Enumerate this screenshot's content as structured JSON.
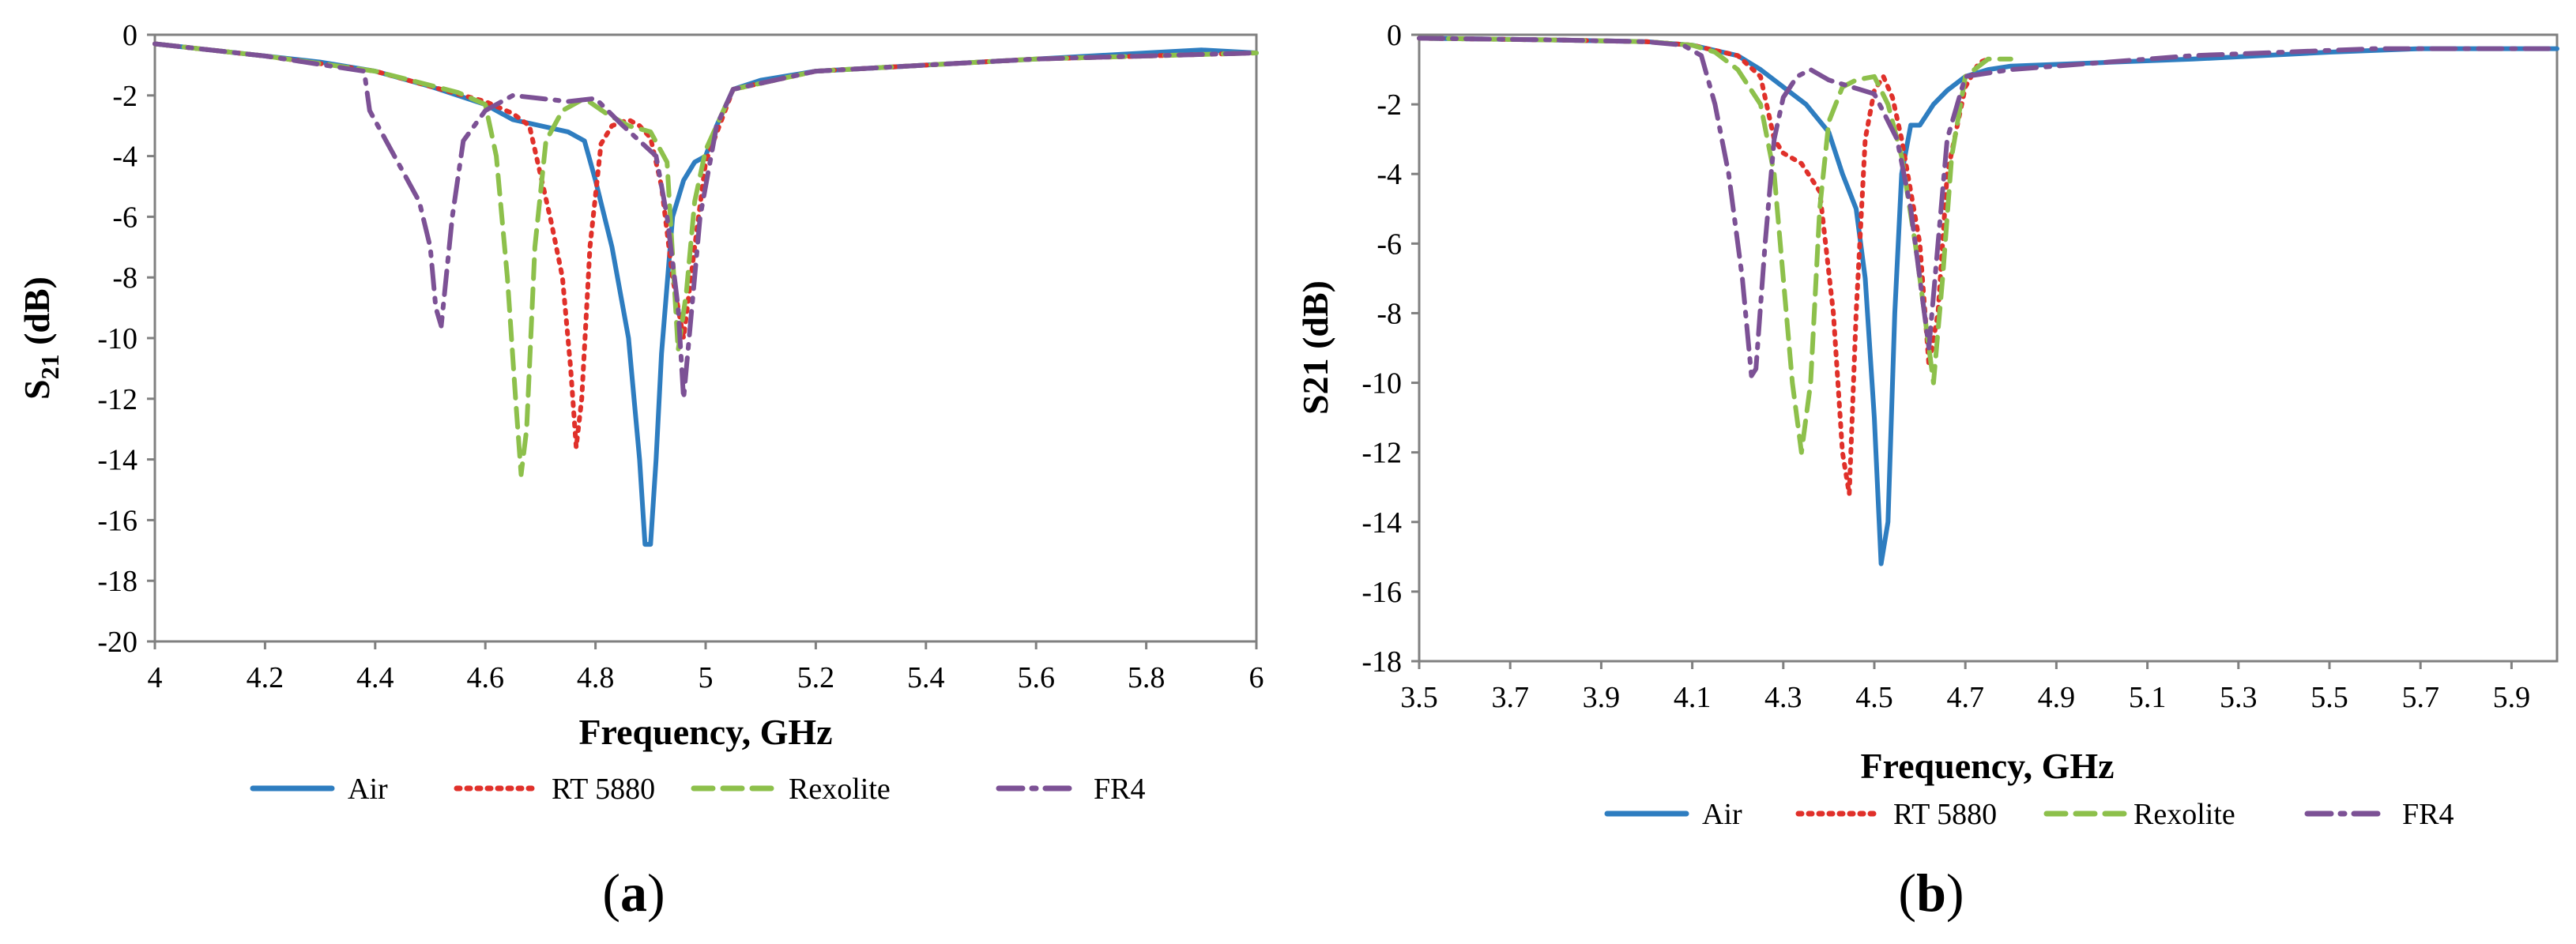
{
  "chart_data": [
    {
      "type": "line",
      "panel_label": "a",
      "title": "",
      "xlabel": "Frequency, GHz",
      "ylabel": {
        "main": "S",
        "sub": "21",
        "rest": " (dB)"
      },
      "xlim": [
        4,
        6
      ],
      "ylim": [
        -20,
        0
      ],
      "x_ticks": [
        "4",
        "4.2",
        "4.4",
        "4.6",
        "4.8",
        "5",
        "5.2",
        "5.4",
        "5.6",
        "5.8",
        "6"
      ],
      "y_ticks": [
        "0",
        "-2",
        "-4",
        "-6",
        "-8",
        "-10",
        "-12",
        "-14",
        "-16",
        "-18",
        "-20"
      ],
      "grid": false,
      "legend_position": "bottom",
      "series": [
        {
          "name": "Air",
          "color": "#2E7DC0",
          "style": "solid",
          "x": [
            4.0,
            4.1,
            4.2,
            4.3,
            4.4,
            4.5,
            4.6,
            4.65,
            4.7,
            4.75,
            4.78,
            4.8,
            4.83,
            4.86,
            4.88,
            4.89,
            4.9,
            4.91,
            4.92,
            4.94,
            4.96,
            4.98,
            5.0,
            5.02,
            5.05,
            5.1,
            5.2,
            5.4,
            5.6,
            5.8,
            5.9,
            6.0
          ],
          "y": [
            -0.3,
            -0.5,
            -0.7,
            -0.9,
            -1.2,
            -1.7,
            -2.3,
            -2.8,
            -3.0,
            -3.2,
            -3.5,
            -4.8,
            -7.0,
            -10.0,
            -14.0,
            -16.8,
            -16.8,
            -14.0,
            -10.5,
            -6.0,
            -4.8,
            -4.2,
            -4.0,
            -3.0,
            -1.8,
            -1.5,
            -1.2,
            -1.0,
            -0.8,
            -0.6,
            -0.5,
            -0.6
          ]
        },
        {
          "name": "RT 5880",
          "color": "#E0302A",
          "style": "dotted",
          "x": [
            4.0,
            4.2,
            4.4,
            4.6,
            4.65,
            4.68,
            4.7,
            4.72,
            4.74,
            4.755,
            4.765,
            4.775,
            4.79,
            4.81,
            4.83,
            4.86,
            4.88,
            4.9,
            4.92,
            4.94,
            4.96,
            4.98,
            5.0,
            5.05,
            5.2,
            5.6,
            6.0
          ],
          "y": [
            -0.3,
            -0.7,
            -1.2,
            -2.2,
            -2.6,
            -3.0,
            -4.6,
            -6.2,
            -8.0,
            -11.0,
            -13.6,
            -12.0,
            -7.0,
            -3.6,
            -3.0,
            -2.8,
            -3.0,
            -3.4,
            -5.0,
            -8.0,
            -10.0,
            -7.0,
            -4.2,
            -1.8,
            -1.2,
            -0.8,
            -0.6
          ]
        },
        {
          "name": "Rexolite",
          "color": "#8DC04B",
          "style": "dashed",
          "x": [
            4.0,
            4.2,
            4.4,
            4.55,
            4.6,
            4.62,
            4.64,
            4.655,
            4.665,
            4.675,
            4.69,
            4.71,
            4.74,
            4.78,
            4.82,
            4.86,
            4.9,
            4.93,
            4.95,
            4.965,
            4.98,
            5.0,
            5.05,
            5.2,
            5.6,
            6.0
          ],
          "y": [
            -0.3,
            -0.7,
            -1.2,
            -1.9,
            -2.3,
            -4.0,
            -8.0,
            -12.0,
            -14.5,
            -13.0,
            -7.0,
            -3.5,
            -2.5,
            -2.1,
            -2.6,
            -3.0,
            -3.2,
            -4.2,
            -10.4,
            -8.5,
            -5.5,
            -3.8,
            -1.8,
            -1.2,
            -0.8,
            -0.6
          ]
        },
        {
          "name": "FR4",
          "color": "#7C5195",
          "style": "dashdot",
          "x": [
            4.0,
            4.2,
            4.38,
            4.39,
            4.42,
            4.45,
            4.48,
            4.5,
            4.51,
            4.52,
            4.54,
            4.56,
            4.6,
            4.65,
            4.7,
            4.75,
            4.8,
            4.85,
            4.88,
            4.91,
            4.93,
            4.95,
            4.96,
            4.97,
            4.99,
            5.02,
            5.05,
            5.2,
            5.6,
            6.0
          ],
          "y": [
            -0.3,
            -0.7,
            -1.2,
            -2.5,
            -3.5,
            -4.5,
            -5.5,
            -7.0,
            -9.0,
            -9.6,
            -6.0,
            -3.5,
            -2.5,
            -2.0,
            -2.1,
            -2.2,
            -2.1,
            -3.0,
            -3.5,
            -4.0,
            -6.0,
            -9.0,
            -12.0,
            -10.0,
            -6.0,
            -3.0,
            -1.8,
            -1.2,
            -0.8,
            -0.6
          ]
        }
      ],
      "caption": "a"
    },
    {
      "type": "line",
      "panel_label": "b",
      "title": "",
      "xlabel": "Frequency, GHz",
      "ylabel": {
        "main": "S21",
        "sub": "",
        "rest": " (dB)"
      },
      "xlim": [
        3.5,
        6.0
      ],
      "ylim": [
        -18,
        0
      ],
      "x_ticks": [
        "3.5",
        "3.7",
        "3.9",
        "4.1",
        "4.3",
        "4.5",
        "4.7",
        "4.9",
        "5.1",
        "5.3",
        "5.5",
        "5.7",
        "5.9"
      ],
      "y_ticks": [
        "0",
        "-2",
        "-4",
        "-6",
        "-8",
        "-10",
        "-12",
        "-14",
        "-16",
        "-18"
      ],
      "grid": false,
      "legend_position": "bottom",
      "series": [
        {
          "name": "Air",
          "color": "#2E7DC0",
          "style": "solid",
          "x": [
            3.5,
            3.8,
            4.0,
            4.1,
            4.2,
            4.25,
            4.3,
            4.35,
            4.4,
            4.43,
            4.46,
            4.48,
            4.5,
            4.515,
            4.53,
            4.545,
            4.56,
            4.58,
            4.6,
            4.63,
            4.66,
            4.7,
            4.75,
            4.8,
            5.0,
            5.2,
            5.5,
            5.7,
            5.9,
            6.0
          ],
          "y": [
            -0.1,
            -0.15,
            -0.2,
            -0.3,
            -0.6,
            -1.0,
            -1.5,
            -2.0,
            -2.8,
            -4.0,
            -5.0,
            -7.0,
            -11.0,
            -15.2,
            -14.0,
            -8.0,
            -4.0,
            -2.6,
            -2.6,
            -2.0,
            -1.6,
            -1.2,
            -1.0,
            -0.9,
            -0.8,
            -0.7,
            -0.5,
            -0.4,
            -0.4,
            -0.4
          ]
        },
        {
          "name": "RT 5880",
          "color": "#E0302A",
          "style": "dotted",
          "x": [
            3.5,
            3.8,
            4.0,
            4.1,
            4.2,
            4.25,
            4.28,
            4.3,
            4.34,
            4.38,
            4.41,
            4.43,
            4.445,
            4.46,
            4.48,
            4.5,
            4.52,
            4.54,
            4.56,
            4.58,
            4.6,
            4.62,
            4.64,
            4.66,
            4.7,
            4.73,
            4.75
          ],
          "y": [
            -0.1,
            -0.15,
            -0.2,
            -0.3,
            -0.6,
            -1.2,
            -3.0,
            -3.4,
            -3.7,
            -4.5,
            -8.0,
            -12.0,
            -13.2,
            -8.0,
            -3.0,
            -1.6,
            -1.2,
            -1.8,
            -3.0,
            -4.5,
            -6.0,
            -9.5,
            -8.0,
            -4.0,
            -1.5,
            -0.8,
            -0.7
          ]
        },
        {
          "name": "Rexolite",
          "color": "#8DC04B",
          "style": "dashed",
          "x": [
            3.5,
            3.8,
            4.0,
            4.1,
            4.15,
            4.2,
            4.25,
            4.28,
            4.3,
            4.32,
            4.34,
            4.36,
            4.38,
            4.4,
            4.43,
            4.46,
            4.5,
            4.53,
            4.56,
            4.59,
            4.61,
            4.63,
            4.65,
            4.67,
            4.7,
            4.75,
            4.8
          ],
          "y": [
            -0.1,
            -0.15,
            -0.2,
            -0.3,
            -0.5,
            -1.0,
            -2.0,
            -4.0,
            -7.0,
            -10.0,
            -12.0,
            -10.0,
            -5.0,
            -2.5,
            -1.5,
            -1.3,
            -1.2,
            -2.0,
            -3.5,
            -6.0,
            -8.0,
            -10.0,
            -7.0,
            -3.5,
            -1.2,
            -0.7,
            -0.7
          ]
        },
        {
          "name": "FR4",
          "color": "#7C5195",
          "style": "dashdot",
          "x": [
            3.5,
            3.8,
            4.0,
            4.08,
            4.12,
            4.15,
            4.18,
            4.21,
            4.23,
            4.24,
            4.26,
            4.28,
            4.3,
            4.33,
            4.36,
            4.4,
            4.45,
            4.5,
            4.55,
            4.58,
            4.6,
            4.62,
            4.64,
            4.66,
            4.7,
            4.8,
            5.0,
            5.2,
            5.4,
            5.6,
            5.8,
            6.0
          ],
          "y": [
            -0.1,
            -0.15,
            -0.2,
            -0.3,
            -0.6,
            -2.0,
            -4.0,
            -7.0,
            -9.8,
            -9.6,
            -6.0,
            -3.0,
            -1.8,
            -1.2,
            -1.0,
            -1.3,
            -1.5,
            -1.7,
            -3.0,
            -5.0,
            -7.0,
            -9.0,
            -6.0,
            -3.0,
            -1.2,
            -1.0,
            -0.8,
            -0.6,
            -0.5,
            -0.4,
            -0.4,
            -0.4
          ]
        }
      ],
      "caption": "b"
    }
  ]
}
